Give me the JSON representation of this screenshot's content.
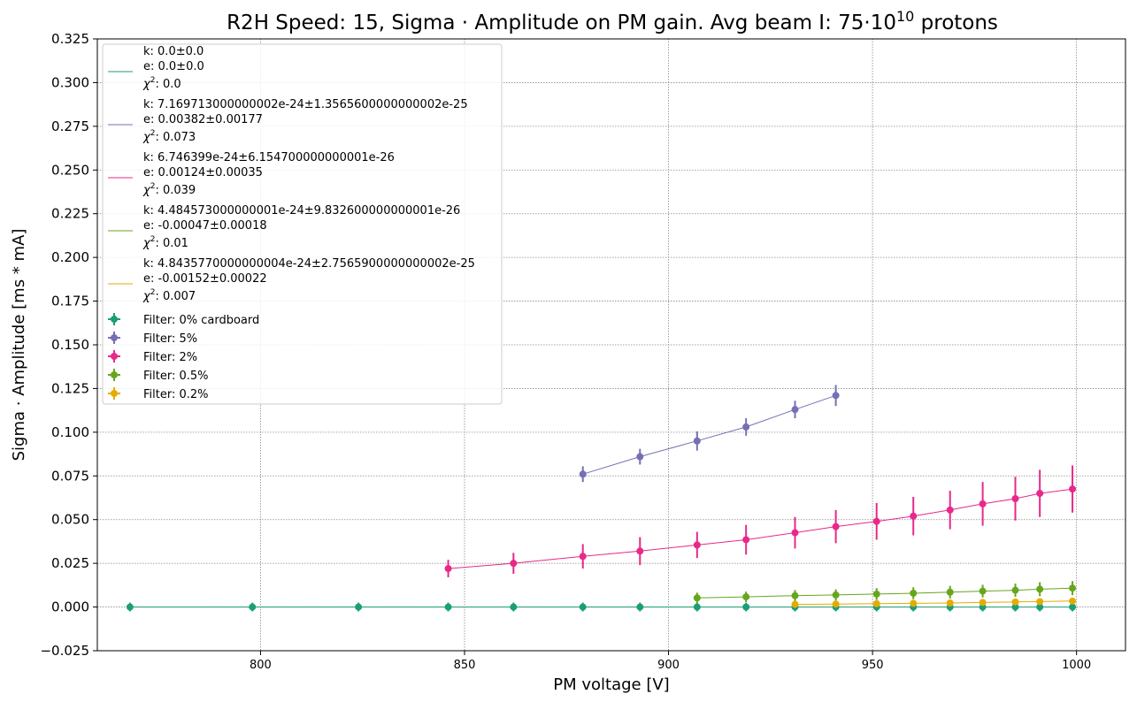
{
  "chart_data": {
    "type": "scatter",
    "title": "R2H Speed: 15, Sigma · Amplitude on PM gain. Avg beam I: 75·10",
    "title_sup": "10",
    "title_end": " protons",
    "xlabel": "PM voltage [V]",
    "ylabel": "Sigma · Amplitude [ms * mA]",
    "xlim": [
      760,
      1012
    ],
    "ylim": [
      -0.025,
      0.325
    ],
    "xticks": [
      800,
      850,
      900,
      950,
      1000
    ],
    "xtick_labels": [
      "800",
      "850",
      "900",
      "950",
      "1000"
    ],
    "yticks": [
      -0.025,
      0,
      0.025,
      0.05,
      0.075,
      0.1,
      0.125,
      0.15,
      0.175,
      0.2,
      0.225,
      0.25,
      0.275,
      0.3,
      0.325
    ],
    "ytick_labels": [
      "−0.025",
      "0.000",
      "0.025",
      "0.050",
      "0.075",
      "0.100",
      "0.125",
      "0.150",
      "0.175",
      "0.200",
      "0.225",
      "0.250",
      "0.275",
      "0.300",
      "0.325"
    ],
    "grid": true,
    "legend_position": "top-left",
    "fit_legend": [
      {
        "color": "#1b9e77",
        "k": "k: 0.0±0.0",
        "e": "e: 0.0±0.0",
        "chi_label": "χ",
        "chi_sup": "2",
        "chi_value": ": 0.0"
      },
      {
        "color": "#7570b3",
        "k": "k: 7.169713000000002e-24±1.3565600000000002e-25",
        "e": "e: 0.00382±0.00177",
        "chi_label": "χ",
        "chi_sup": "2",
        "chi_value": ": 0.073"
      },
      {
        "color": "#e7298a",
        "k": "k: 6.746399e-24±6.154700000000001e-26",
        "e": "e: 0.00124±0.00035",
        "chi_label": "χ",
        "chi_sup": "2",
        "chi_value": ": 0.039"
      },
      {
        "color": "#66a61e",
        "k": "k: 4.484573000000001e-24±9.832600000000001e-26",
        "e": "e: -0.00047±0.00018",
        "chi_label": "χ",
        "chi_sup": "2",
        "chi_value": ": 0.01"
      },
      {
        "color": "#e6ab02",
        "k": "k: 4.8435770000000004e-24±2.7565900000000002e-25",
        "e": "e: -0.00152±0.00022",
        "chi_label": "χ",
        "chi_sup": "2",
        "chi_value": ": 0.007"
      }
    ],
    "series": [
      {
        "name": "Filter: 0% cardboard",
        "color": "#1b9e77",
        "x": [
          768,
          798,
          824,
          846,
          862,
          879,
          893,
          907,
          919,
          931,
          941,
          951,
          960,
          969,
          977,
          985,
          991,
          999
        ],
        "y": [
          0,
          0,
          0,
          0,
          0,
          0,
          0,
          0,
          0,
          0,
          0,
          0,
          0,
          0,
          0,
          0,
          0,
          0
        ],
        "err": [
          0.0025,
          0.0025,
          0.0025,
          0.0025,
          0.0025,
          0.0025,
          0.0025,
          0.0025,
          0.0025,
          0.0025,
          0.0025,
          0.0025,
          0.0025,
          0.0025,
          0.0025,
          0.0025,
          0.0025,
          0.0025
        ]
      },
      {
        "name": "Filter: 5%",
        "color": "#7570b3",
        "x": [
          879,
          893,
          907,
          919,
          931,
          941
        ],
        "y": [
          0.076,
          0.086,
          0.095,
          0.103,
          0.113,
          0.121
        ],
        "err": [
          0.0045,
          0.0045,
          0.0055,
          0.005,
          0.005,
          0.006
        ]
      },
      {
        "name": "Filter: 2%",
        "color": "#e7298a",
        "x": [
          846,
          862,
          879,
          893,
          907,
          919,
          931,
          941,
          951,
          960,
          969,
          977,
          985,
          991,
          999
        ],
        "y": [
          0.022,
          0.025,
          0.029,
          0.032,
          0.0355,
          0.0385,
          0.0425,
          0.046,
          0.049,
          0.052,
          0.0555,
          0.059,
          0.062,
          0.065,
          0.0675
        ],
        "err": [
          0.005,
          0.006,
          0.007,
          0.008,
          0.0075,
          0.0085,
          0.009,
          0.0095,
          0.0105,
          0.011,
          0.011,
          0.0125,
          0.0125,
          0.0135,
          0.0135
        ]
      },
      {
        "name": "Filter: 0.5%",
        "color": "#66a61e",
        "x": [
          907,
          919,
          931,
          941,
          951,
          960,
          969,
          977,
          985,
          991,
          999
        ],
        "y": [
          0.0052,
          0.0058,
          0.0065,
          0.0069,
          0.0074,
          0.0079,
          0.0085,
          0.0091,
          0.0096,
          0.0102,
          0.0108
        ],
        "err": [
          0.003,
          0.003,
          0.0032,
          0.0032,
          0.0034,
          0.0034,
          0.0036,
          0.0036,
          0.0038,
          0.004,
          0.004
        ]
      },
      {
        "name": "Filter: 0.2%",
        "color": "#e6ab02",
        "x": [
          931,
          941,
          951,
          960,
          969,
          977,
          985,
          991,
          999
        ],
        "y": [
          0.0015,
          0.0017,
          0.0019,
          0.0021,
          0.0023,
          0.0026,
          0.0029,
          0.0031,
          0.0034
        ],
        "err": [
          0.0012,
          0.0012,
          0.0012,
          0.0012,
          0.0013,
          0.0013,
          0.0013,
          0.0014,
          0.0014
        ]
      }
    ]
  }
}
